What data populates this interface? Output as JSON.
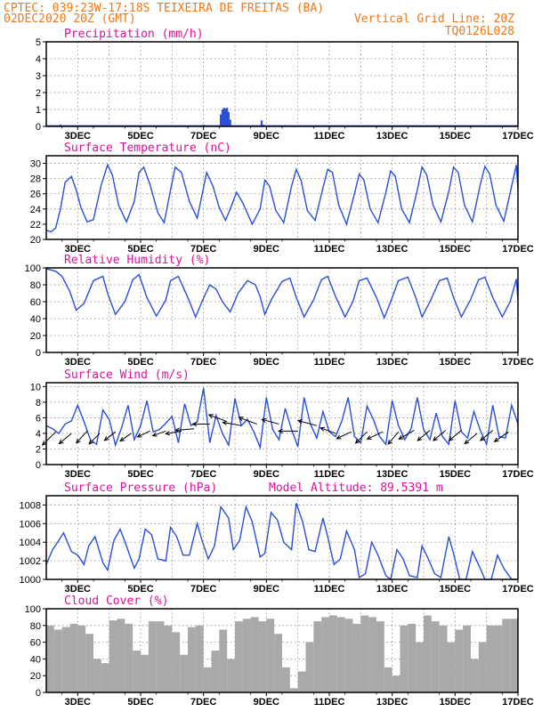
{
  "header": {
    "left_line1": "CPTEC:  039:23W-17:18S  TEIXEIRA DE FREITAS (BA)",
    "left_line2": "02DEC2020 20Z (GMT)",
    "right_line2": "Vertical Grid Line: 20Z",
    "right_line3": "TQ0126L028"
  },
  "colors": {
    "header": "#f07818",
    "title": "#e0109a",
    "series": "#2a4fd8",
    "cloud": "#a9a9a9",
    "arrow": "#000000"
  },
  "x_axis": {
    "start": 2.0,
    "end": 17.0,
    "tick_positions": [
      3,
      5,
      7,
      9,
      11,
      13,
      15,
      17
    ],
    "tick_labels": [
      "3DEC",
      "5DEC",
      "7DEC",
      "9DEC",
      "11DEC",
      "13DEC",
      "15DEC",
      "17DEC"
    ]
  },
  "panels": [
    {
      "title": "Precipitation (mm/h)",
      "extra": "",
      "yticks": [
        "0",
        "1",
        "2",
        "3",
        "4",
        "5"
      ]
    },
    {
      "title": "Surface Temperature (nC)",
      "extra": "",
      "yticks": [
        "20",
        "22",
        "24",
        "26",
        "28",
        "30"
      ]
    },
    {
      "title": "Relative Humidity (%)",
      "extra": "",
      "yticks": [
        "0",
        "20",
        "40",
        "60",
        "80",
        "100"
      ]
    },
    {
      "title": "Surface Wind (m/s)",
      "extra": "",
      "yticks": [
        "0",
        "2",
        "4",
        "6",
        "8",
        "10"
      ]
    },
    {
      "title": "Surface Pressure (hPa)",
      "extra": "Model Altitude: 89.5391 m",
      "yticks": [
        "1000",
        "1002",
        "1004",
        "1006",
        "1008"
      ]
    },
    {
      "title": "Cloud Cover (%)",
      "extra": "",
      "yticks": [
        "0",
        "20",
        "40",
        "60",
        "80",
        "100"
      ]
    }
  ],
  "chart_data": [
    {
      "type": "bar",
      "title": "Precipitation (mm/h)",
      "ylim": [
        0,
        5
      ],
      "x": [
        2.45,
        2.6,
        3.9,
        4.2,
        6.9,
        7.0,
        7.55,
        7.6,
        7.65,
        7.7,
        7.75,
        7.8,
        7.85,
        8.85,
        8.9,
        9.3,
        10.4,
        12.2,
        14.6
      ],
      "values": [
        0.1,
        0.05,
        0.05,
        0.04,
        0.05,
        0.1,
        0.7,
        1.0,
        1.1,
        1.05,
        1.1,
        0.85,
        0.4,
        0.35,
        0.1,
        0.05,
        0.05,
        0.04,
        0.04
      ]
    },
    {
      "type": "line",
      "title": "Surface Temperature (nC)",
      "ylim": [
        20,
        31
      ],
      "x": [
        2.0,
        2.15,
        2.3,
        2.45,
        2.6,
        2.8,
        2.95,
        3.1,
        3.3,
        3.5,
        3.75,
        3.95,
        4.1,
        4.3,
        4.55,
        4.8,
        4.95,
        5.1,
        5.3,
        5.55,
        5.75,
        5.95,
        6.1,
        6.3,
        6.55,
        6.8,
        6.95,
        7.1,
        7.3,
        7.5,
        7.7,
        7.85,
        8.05,
        8.25,
        8.55,
        8.8,
        8.95,
        9.1,
        9.3,
        9.55,
        9.8,
        9.95,
        10.1,
        10.3,
        10.55,
        10.8,
        10.95,
        11.1,
        11.3,
        11.55,
        11.8,
        11.95,
        12.1,
        12.3,
        12.55,
        12.8,
        12.95,
        13.1,
        13.3,
        13.55,
        13.8,
        13.95,
        14.1,
        14.3,
        14.55,
        14.8,
        14.95,
        15.1,
        15.3,
        15.55,
        15.8,
        15.95,
        16.1,
        16.3,
        16.55,
        16.8,
        16.95,
        17.0
      ],
      "values": [
        21.2,
        21.0,
        21.5,
        24.0,
        27.5,
        28.3,
        26.5,
        24.2,
        22.3,
        22.6,
        27.2,
        29.8,
        28.5,
        24.5,
        22.3,
        25.0,
        28.8,
        29.5,
        27.2,
        23.5,
        22.2,
        26.5,
        29.5,
        28.8,
        25.0,
        22.8,
        25.8,
        28.8,
        27.0,
        24.2,
        22.5,
        24.0,
        26.2,
        24.8,
        22.0,
        24.0,
        27.8,
        27.0,
        23.8,
        22.2,
        27.0,
        29.2,
        27.8,
        23.8,
        22.5,
        26.8,
        29.2,
        28.8,
        24.5,
        22.0,
        26.0,
        28.6,
        27.8,
        24.0,
        22.2,
        26.2,
        29.0,
        28.3,
        24.0,
        22.2,
        26.5,
        29.5,
        28.5,
        24.5,
        22.3,
        26.3,
        29.5,
        28.8,
        24.5,
        22.3,
        27.2,
        29.6,
        28.6,
        24.5,
        22.4,
        27.0,
        29.8,
        26.5
      ]
    },
    {
      "type": "line",
      "title": "Relative Humidity (%)",
      "ylim": [
        0,
        100
      ],
      "x": [
        2.0,
        2.3,
        2.5,
        2.75,
        2.95,
        3.2,
        3.5,
        3.8,
        3.95,
        4.2,
        4.5,
        4.75,
        4.95,
        5.2,
        5.5,
        5.8,
        5.95,
        6.2,
        6.5,
        6.75,
        6.95,
        7.2,
        7.4,
        7.6,
        7.85,
        8.1,
        8.4,
        8.65,
        8.8,
        8.95,
        9.15,
        9.5,
        9.75,
        9.95,
        10.2,
        10.5,
        10.75,
        10.95,
        11.2,
        11.5,
        11.75,
        11.95,
        12.2,
        12.5,
        12.75,
        12.95,
        13.2,
        13.5,
        13.75,
        13.95,
        14.2,
        14.5,
        14.75,
        14.95,
        15.2,
        15.5,
        15.75,
        15.95,
        16.2,
        16.5,
        16.75,
        16.95,
        17.0
      ],
      "values": [
        99,
        96,
        90,
        72,
        50,
        58,
        85,
        90,
        70,
        45,
        60,
        86,
        92,
        65,
        43,
        62,
        85,
        90,
        65,
        42,
        60,
        80,
        75,
        60,
        48,
        70,
        85,
        80,
        66,
        45,
        62,
        84,
        88,
        65,
        42,
        62,
        86,
        90,
        66,
        42,
        60,
        85,
        88,
        65,
        41,
        60,
        85,
        89,
        65,
        42,
        60,
        85,
        88,
        65,
        42,
        63,
        86,
        89,
        65,
        42,
        60,
        87,
        62
      ]
    },
    {
      "type": "line",
      "title": "Surface Wind (m/s)",
      "ylim": [
        0,
        10.5
      ],
      "x": [
        2.0,
        2.2,
        2.4,
        2.6,
        2.8,
        3.0,
        3.2,
        3.4,
        3.6,
        3.8,
        4.0,
        4.2,
        4.4,
        4.6,
        4.8,
        5.0,
        5.2,
        5.4,
        5.6,
        5.8,
        6.0,
        6.2,
        6.4,
        6.6,
        6.8,
        7.0,
        7.2,
        7.4,
        7.6,
        7.8,
        8.0,
        8.2,
        8.4,
        8.6,
        8.8,
        9.0,
        9.2,
        9.4,
        9.6,
        9.8,
        10.0,
        10.2,
        10.4,
        10.6,
        10.8,
        11.0,
        11.2,
        11.4,
        11.6,
        11.8,
        12.0,
        12.2,
        12.4,
        12.6,
        12.8,
        13.0,
        13.2,
        13.4,
        13.6,
        13.8,
        14.0,
        14.2,
        14.4,
        14.6,
        14.8,
        15.0,
        15.2,
        15.4,
        15.6,
        15.8,
        16.0,
        16.2,
        16.4,
        16.6,
        16.8,
        17.0
      ],
      "values": [
        5.0,
        4.6,
        4.0,
        5.2,
        5.6,
        7.6,
        5.5,
        3.2,
        2.6,
        7.0,
        5.8,
        2.5,
        4.8,
        7.6,
        3.2,
        5.0,
        8.2,
        4.2,
        4.5,
        5.3,
        6.2,
        2.8,
        7.8,
        5.0,
        5.5,
        9.8,
        2.8,
        6.3,
        4.0,
        2.5,
        8.5,
        5.0,
        5.8,
        4.2,
        2.2,
        8.6,
        4.5,
        3.2,
        7.2,
        4.5,
        2.3,
        8.6,
        5.2,
        3.4,
        6.8,
        4.2,
        3.6,
        5.6,
        8.6,
        3.6,
        2.8,
        7.5,
        5.8,
        3.6,
        2.6,
        8.2,
        5.0,
        3.2,
        4.6,
        8.6,
        4.5,
        3.2,
        6.6,
        3.6,
        2.6,
        8.2,
        4.2,
        3.4,
        6.8,
        4.4,
        2.6,
        7.6,
        3.6,
        3.4,
        7.6,
        5.2
      ],
      "arrows": [
        [
          2.3,
          4.2,
          3.5,
          225
        ],
        [
          2.8,
          4.0,
          3.0,
          220
        ],
        [
          3.3,
          4.3,
          3.0,
          228
        ],
        [
          3.7,
          4.0,
          2.8,
          225
        ],
        [
          4.2,
          4.2,
          2.6,
          218
        ],
        [
          4.7,
          4.0,
          2.5,
          215
        ],
        [
          5.3,
          4.3,
          2.6,
          205
        ],
        [
          5.8,
          4.3,
          2.6,
          200
        ],
        [
          6.3,
          4.3,
          3.0,
          190
        ],
        [
          6.7,
          4.6,
          3.5,
          185
        ],
        [
          7.2,
          5.2,
          3.2,
          180
        ],
        [
          7.7,
          5.6,
          3.3,
          160
        ],
        [
          8.2,
          5.0,
          3.5,
          170
        ],
        [
          8.7,
          5.2,
          3.6,
          160
        ],
        [
          9.4,
          5.2,
          3.3,
          165
        ],
        [
          10.0,
          4.3,
          3.6,
          180
        ],
        [
          10.6,
          5.0,
          3.6,
          165
        ],
        [
          11.2,
          4.0,
          3.0,
          160
        ],
        [
          11.7,
          4.2,
          3.0,
          205
        ],
        [
          12.2,
          4.2,
          3.0,
          225
        ],
        [
          12.7,
          4.2,
          3.2,
          205
        ],
        [
          13.2,
          4.2,
          3.0,
          230
        ],
        [
          13.7,
          4.4,
          3.3,
          210
        ],
        [
          14.2,
          4.4,
          3.0,
          220
        ],
        [
          14.7,
          4.4,
          3.0,
          220
        ],
        [
          15.2,
          4.4,
          3.0,
          220
        ],
        [
          15.7,
          4.0,
          3.0,
          220
        ],
        [
          16.2,
          4.4,
          3.0,
          220
        ],
        [
          16.7,
          4.2,
          3.2,
          215
        ]
      ]
    },
    {
      "type": "line",
      "title": "Surface Pressure (hPa)",
      "ylim": [
        1000,
        1009
      ],
      "x": [
        2.0,
        2.2,
        2.4,
        2.55,
        2.8,
        3.0,
        3.2,
        3.35,
        3.55,
        3.8,
        3.95,
        4.15,
        4.35,
        4.55,
        4.8,
        4.95,
        5.15,
        5.35,
        5.55,
        5.8,
        5.95,
        6.15,
        6.35,
        6.55,
        6.8,
        6.95,
        7.15,
        7.35,
        7.55,
        7.8,
        7.95,
        8.15,
        8.35,
        8.55,
        8.8,
        8.95,
        9.15,
        9.35,
        9.55,
        9.8,
        9.95,
        10.15,
        10.35,
        10.55,
        10.8,
        10.95,
        11.15,
        11.35,
        11.55,
        11.8,
        11.95,
        12.15,
        12.35,
        12.55,
        12.8,
        12.95,
        13.15,
        13.35,
        13.55,
        13.8,
        13.95,
        14.15,
        14.35,
        14.55,
        14.8,
        14.95,
        15.15,
        15.35,
        15.55,
        15.8,
        15.95,
        16.15,
        16.35,
        16.55,
        16.8,
        16.95,
        17.0
      ],
      "values": [
        1001.6,
        1003.2,
        1004.2,
        1005.0,
        1003.0,
        1002.6,
        1001.6,
        1003.6,
        1004.6,
        1001.8,
        1001.0,
        1004.2,
        1005.4,
        1003.6,
        1001.2,
        1002.2,
        1005.4,
        1004.8,
        1002.2,
        1002.0,
        1005.6,
        1004.6,
        1002.6,
        1002.6,
        1006.0,
        1004.2,
        1002.2,
        1003.6,
        1007.8,
        1006.6,
        1003.2,
        1004.2,
        1007.8,
        1006.2,
        1002.4,
        1002.8,
        1007.2,
        1006.4,
        1004.0,
        1003.2,
        1008.2,
        1006.2,
        1003.2,
        1003.0,
        1006.6,
        1004.6,
        1001.6,
        1002.2,
        1005.2,
        1003.2,
        1000.2,
        1000.6,
        1004.0,
        1002.6,
        1000.4,
        999.8,
        1003.2,
        1002.2,
        1000.4,
        1000.2,
        1003.6,
        1002.2,
        1000.6,
        1000.2,
        1004.6,
        1002.8,
        999.6,
        999.8,
        1003.0,
        1001.2,
        999.6,
        1000.0,
        1002.6,
        1001.2,
        999.8,
        999.8,
        999.8
      ]
    },
    {
      "type": "bar",
      "title": "Cloud Cover (%)",
      "ylim": [
        0,
        100
      ],
      "x": [
        2.0,
        2.25,
        2.5,
        2.75,
        3.0,
        3.25,
        3.5,
        3.75,
        4.0,
        4.25,
        4.5,
        4.75,
        5.0,
        5.25,
        5.5,
        5.75,
        6.0,
        6.25,
        6.5,
        6.75,
        7.0,
        7.25,
        7.5,
        7.75,
        8.0,
        8.25,
        8.5,
        8.75,
        9.0,
        9.25,
        9.5,
        9.75,
        10.0,
        10.25,
        10.5,
        10.75,
        11.0,
        11.25,
        11.5,
        11.75,
        12.0,
        12.25,
        12.5,
        12.75,
        13.0,
        13.25,
        13.5,
        13.75,
        14.0,
        14.25,
        14.5,
        14.75,
        15.0,
        15.25,
        15.5,
        15.75,
        16.0,
        16.25,
        16.5,
        16.75
      ],
      "values": [
        80,
        75,
        78,
        82,
        80,
        70,
        40,
        35,
        86,
        88,
        82,
        50,
        45,
        85,
        85,
        80,
        72,
        45,
        78,
        80,
        30,
        50,
        75,
        40,
        85,
        88,
        90,
        85,
        88,
        70,
        30,
        5,
        25,
        60,
        85,
        90,
        92,
        90,
        88,
        82,
        92,
        90,
        85,
        30,
        20,
        80,
        82,
        60,
        92,
        85,
        80,
        60,
        75,
        80,
        40,
        60,
        80,
        80,
        88,
        88
      ]
    }
  ]
}
